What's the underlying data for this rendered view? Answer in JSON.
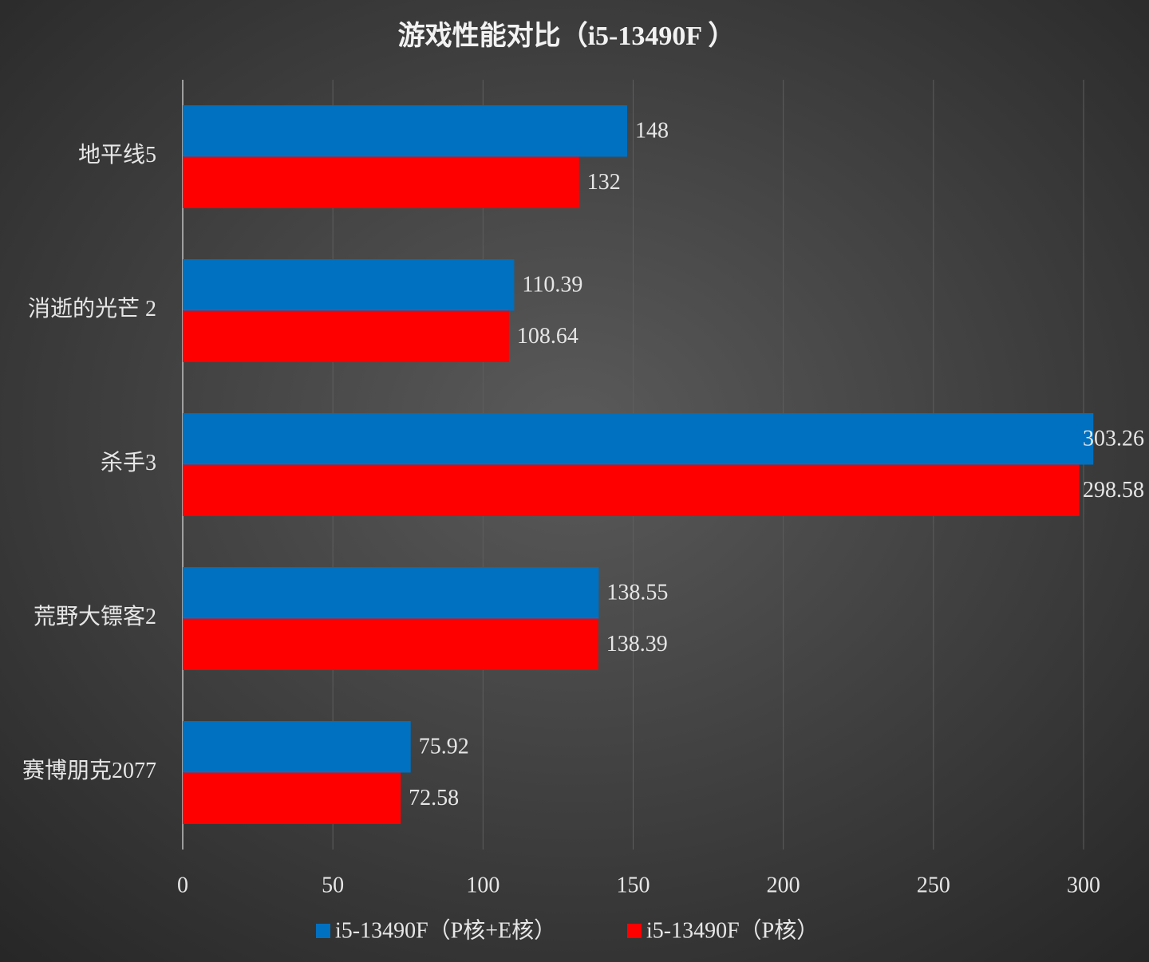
{
  "chart_data": {
    "type": "hbar",
    "title": "游戏性能对比（i5-13490F ）",
    "categories": [
      "地平线5",
      "消逝的光芒 2",
      "杀手3",
      "荒野大镖客2",
      "赛博朋克2077"
    ],
    "series": [
      {
        "name": "i5-13490F（P核+E核）",
        "color": "#0070c0",
        "values": [
          148,
          110.39,
          303.26,
          138.55,
          75.92
        ]
      },
      {
        "name": "i5-13490F（P核）",
        "color": "#ff0000",
        "values": [
          132,
          108.64,
          298.58,
          138.39,
          72.58
        ]
      }
    ],
    "xlim": [
      0,
      300
    ],
    "xticks": [
      0,
      50,
      100,
      150,
      200,
      250,
      300
    ],
    "grid": true,
    "legend": "bottom"
  }
}
